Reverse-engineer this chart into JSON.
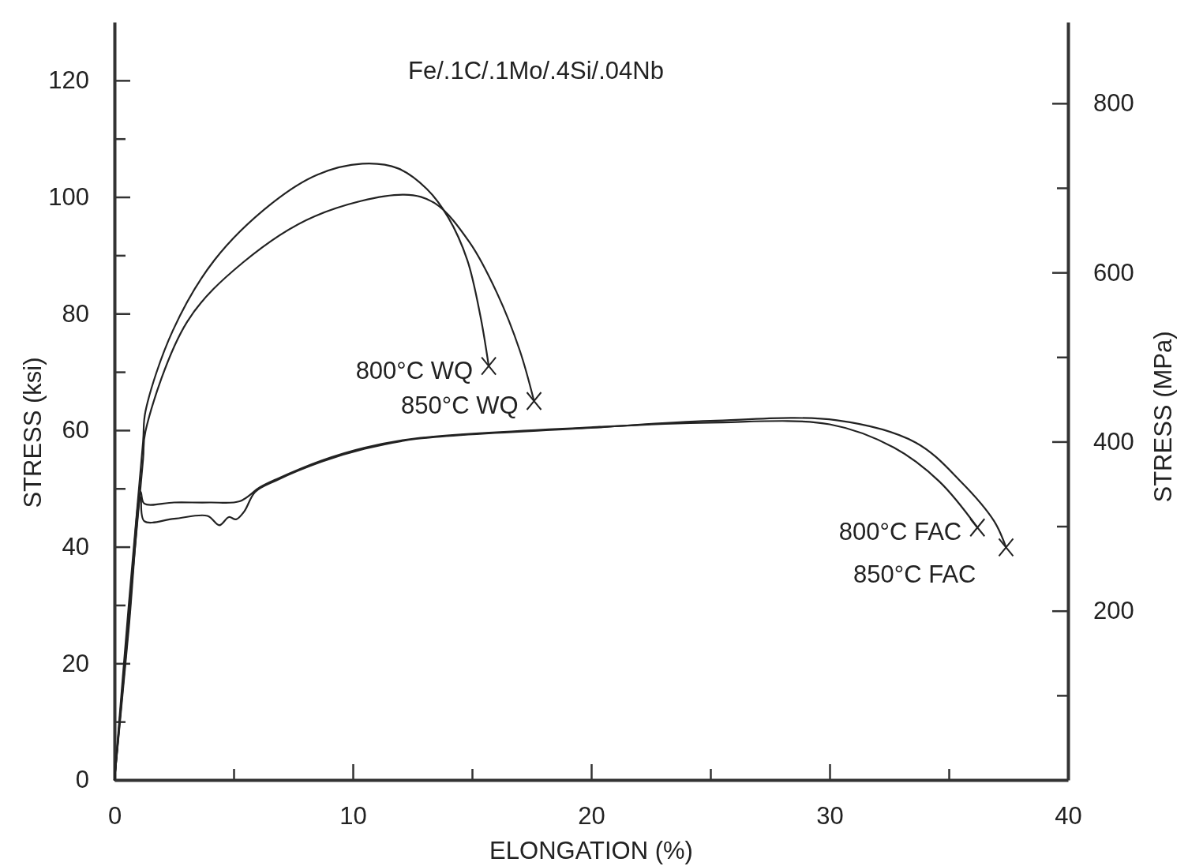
{
  "chart_data": {
    "type": "line",
    "title": "Fe/.1C/.1Mo/.4Si/.04Nb",
    "xlabel": "ELONGATION (%)",
    "ylabel": "STRESS (ksi)",
    "y2label": "STRESS (MPa)",
    "xlim": [
      0,
      40
    ],
    "ylim": [
      0,
      130
    ],
    "y2lim": [
      0,
      896
    ],
    "xticks": [
      0,
      {
        "value": 5,
        "label": null
      },
      10,
      {
        "value": 15,
        "label": null
      },
      20,
      {
        "value": 25,
        "label": null
      },
      30,
      {
        "value": 35,
        "label": null
      },
      40
    ],
    "yticks": [
      0,
      {
        "value": 10,
        "label": null
      },
      20,
      {
        "value": 30,
        "label": null
      },
      40,
      {
        "value": 50,
        "label": null
      },
      60,
      {
        "value": 70,
        "label": null
      },
      80,
      {
        "value": 90,
        "label": null
      },
      100,
      {
        "value": 110,
        "label": null
      },
      120
    ],
    "y2ticks": [
      {
        "value": 100,
        "label": null
      },
      200,
      {
        "value": 300,
        "label": null
      },
      400,
      {
        "value": 500,
        "label": null
      },
      600,
      {
        "value": 700,
        "label": null
      },
      800
    ],
    "series": [
      {
        "name": "800°C WQ",
        "color": "#222222",
        "x": [
          0,
          0.6,
          1.2,
          1.3,
          2.45,
          4.2,
          6.6,
          8.5,
          10.4,
          11.9,
          13.1,
          14.0,
          14.8,
          15.35,
          15.7
        ],
        "values": [
          0,
          30,
          58,
          63.2,
          77.1,
          89.2,
          98.9,
          103.8,
          105.7,
          104.9,
          101.4,
          96.5,
          89.2,
          79.6,
          71
        ]
      },
      {
        "name": "850°C WQ",
        "color": "#222222",
        "x": [
          0,
          0.6,
          1.2,
          1.3,
          3.05,
          5.4,
          8.4,
          12.15,
          13.45,
          14.9,
          16.05,
          17.0,
          17.6
        ],
        "values": [
          0,
          28,
          55,
          59.8,
          78.6,
          88.8,
          96.7,
          100.4,
          98.9,
          92.2,
          83.5,
          73.7,
          65
        ]
      },
      {
        "name": "800°C FAC",
        "color": "#222222",
        "x": [
          0,
          0.6,
          1.1,
          1.25,
          2.5,
          4.0,
          5.25,
          6.1,
          6.8,
          8.7,
          10.5,
          12.65,
          20,
          25,
          30,
          32.7,
          34.6,
          36.2
        ],
        "values": [
          0,
          27,
          49.4,
          47.4,
          47.6,
          47.6,
          47.8,
          50.2,
          51.6,
          54.8,
          57,
          58.6,
          60.5,
          61.3,
          61,
          57,
          51.2,
          43.3
        ]
      },
      {
        "name": "850°C FAC",
        "color": "#222222",
        "x": [
          0,
          0.6,
          1.1,
          1.25,
          2.5,
          3.9,
          4.4,
          4.8,
          5.1,
          5.45,
          5.9,
          6.8,
          8.7,
          10.5,
          12.65,
          20,
          25,
          30.3,
          33.6,
          35.5,
          36.9,
          37.4
        ],
        "values": [
          0,
          26,
          48.5,
          44.4,
          44.8,
          45.3,
          43.7,
          45.1,
          44.7,
          46.1,
          49.4,
          51.4,
          54.6,
          56.8,
          58.5,
          60.4,
          61.6,
          61.7,
          57.9,
          51.2,
          44.4,
          39.9
        ]
      }
    ]
  }
}
